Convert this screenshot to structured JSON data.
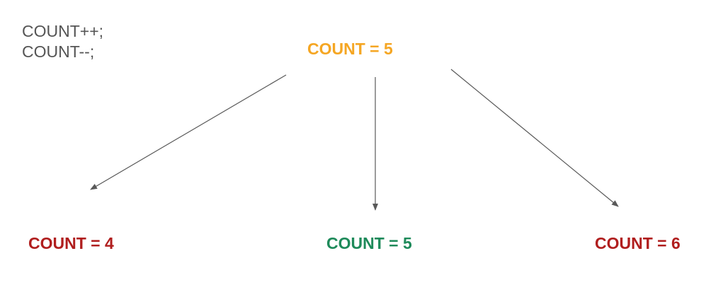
{
  "code": {
    "lines": [
      "COUNT++;",
      "COUNT--;"
    ]
  },
  "nodes": {
    "root": {
      "label": "COUNT = 5",
      "color": "#f5a623"
    },
    "left": {
      "label": "COUNT = 4",
      "color": "#b01e1e"
    },
    "middle": {
      "label": "COUNT = 5",
      "color": "#1e8a5a"
    },
    "right": {
      "label": "COUNT = 6",
      "color": "#b01e1e"
    }
  },
  "edges": [
    {
      "from": "root",
      "to": "left"
    },
    {
      "from": "root",
      "to": "middle"
    },
    {
      "from": "root",
      "to": "right"
    }
  ],
  "colors": {
    "code_text": "#555555",
    "arrow": "#595959"
  }
}
